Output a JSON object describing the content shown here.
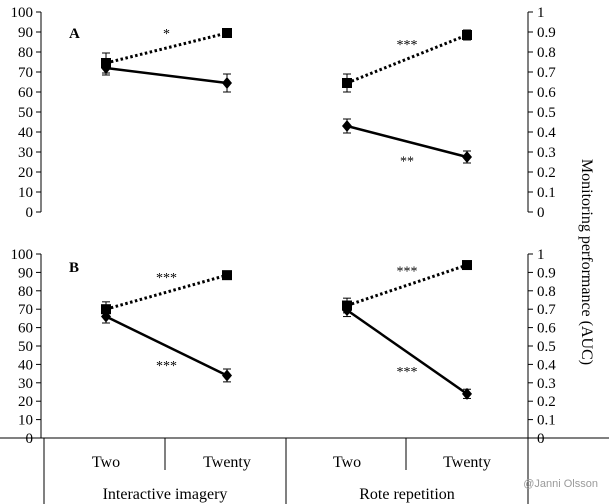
{
  "chart_data": [
    {
      "type": "line",
      "panel_label": "A",
      "x_categories": [
        "Two",
        "Twenty"
      ],
      "groups": [
        "Interactive imagery",
        "Rote repetition"
      ],
      "ylim_left": [
        0,
        100
      ],
      "ylim_right": [
        0,
        1
      ],
      "yticks_left": [
        "0",
        "10",
        "20",
        "30",
        "40",
        "50",
        "60",
        "70",
        "80",
        "90",
        "100"
      ],
      "yticks_right": [
        "0",
        "0.1",
        "0.2",
        "0.3",
        "0.4",
        "0.5",
        "0.6",
        "0.7",
        "0.8",
        "0.9",
        "1"
      ],
      "series": [
        {
          "style": "dotted",
          "marker": "square",
          "axis": "right",
          "groups": [
            {
              "values": [
                0.745,
                0.895
              ],
              "errors": [
                0.05,
                0.0
              ],
              "significance": "*"
            },
            {
              "values": [
                0.645,
                0.885
              ],
              "errors": [
                0.045,
                0.025
              ],
              "significance": "***"
            }
          ]
        },
        {
          "style": "solid",
          "marker": "diamond",
          "axis": "left",
          "groups": [
            {
              "values": [
                72,
                64.5
              ],
              "errors": [
                3.5,
                4.5
              ],
              "significance": ""
            },
            {
              "values": [
                43,
                27.5
              ],
              "errors": [
                3.5,
                3.0
              ],
              "significance": "**"
            }
          ]
        }
      ]
    },
    {
      "type": "line",
      "panel_label": "B",
      "x_categories": [
        "Two",
        "Twenty"
      ],
      "groups": [
        "Interactive imagery",
        "Rote repetition"
      ],
      "ylim_left": [
        0,
        100
      ],
      "ylim_right": [
        0,
        1
      ],
      "yticks_left": [
        "0",
        "10",
        "20",
        "30",
        "40",
        "50",
        "60",
        "70",
        "80",
        "90",
        "100"
      ],
      "yticks_right": [
        "0",
        "0.1",
        "0.2",
        "0.3",
        "0.4",
        "0.5",
        "0.6",
        "0.7",
        "0.8",
        "0.9",
        "1"
      ],
      "series": [
        {
          "style": "dotted",
          "marker": "square",
          "axis": "right",
          "groups": [
            {
              "values": [
                0.7,
                0.885
              ],
              "errors": [
                0.04,
                0.0
              ],
              "significance": "***"
            },
            {
              "values": [
                0.72,
                0.94
              ],
              "errors": [
                0.04,
                0.0
              ],
              "significance": "***"
            }
          ]
        },
        {
          "style": "solid",
          "marker": "diamond",
          "axis": "left",
          "groups": [
            {
              "values": [
                66,
                34
              ],
              "errors": [
                3.5,
                3.5
              ],
              "significance": "***"
            },
            {
              "values": [
                69.5,
                24
              ],
              "errors": [
                3.5,
                2.5
              ],
              "significance": "***"
            }
          ]
        }
      ]
    }
  ],
  "right_axis_label": "Monitoring performance (AUC)",
  "watermark": "@Janni Olsson"
}
